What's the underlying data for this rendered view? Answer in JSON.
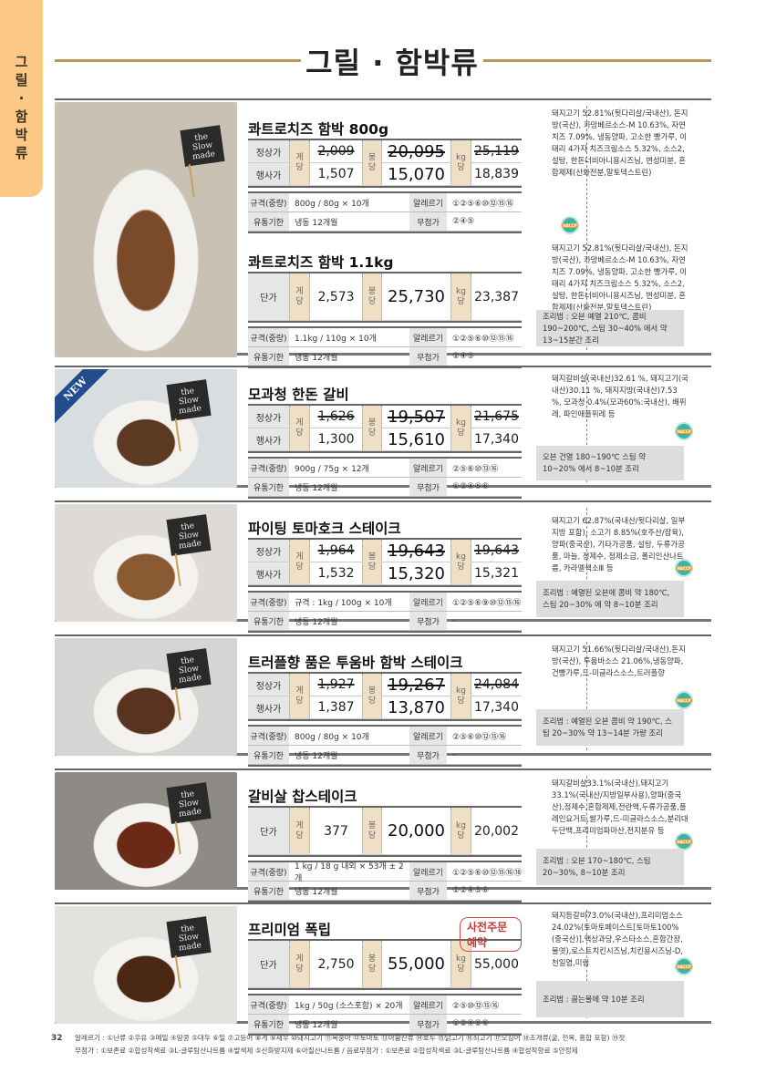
{
  "sidebar_tab": [
    "그",
    "릴",
    "·",
    "함",
    "박",
    "류"
  ],
  "page_title": "그릴 · 함박류",
  "labels": {
    "regular_price": "정상가",
    "event_price": "행사가",
    "unit_price": "단가",
    "per_piece": [
      "게",
      "당"
    ],
    "per_pack": [
      "봉",
      "당"
    ],
    "per_kg": [
      "kg",
      "당"
    ],
    "spec": "규격(중량)",
    "allergy": "알레르기",
    "shelf_life": "유통기한",
    "additive_free": "무첨가",
    "flag": [
      "the",
      "Slow",
      "made"
    ],
    "new_badge": "NEW"
  },
  "colors": {
    "accent_tab": "#fbc985",
    "title_rule": "#b9975b",
    "unit_bg": "#efdfc5",
    "label_bg": "#e6e6e6",
    "preorder": "#c03838",
    "haccp": "#3ab4a4"
  },
  "products": [
    {
      "name": "콰트로치즈 함박 800g",
      "type": "event",
      "regular": {
        "piece": "2,009",
        "pack": "20,095",
        "kg": "25,119"
      },
      "event": {
        "piece": "1,507",
        "pack": "15,070",
        "kg": "18,839"
      },
      "spec": "800g / 80g × 10개",
      "allergy": "①②⑤⑥⑩⑫⑮⑯",
      "shelf": "냉동 12개월",
      "additive_free": "②④⑤",
      "ingredients": "돼지고기 52.81%(뒷다리살/국내산), 돈지방(국산), 카망베르소스-M 10.63%, 자연치즈 7.09%, 냉동양파, 고소한 빵가루, 이태리 4가지 치즈크림소스 5.32%, 소스2, 설탕, 한돈너비아니용시즈닝, 변성미분, 혼합제제(산화전분,말토덱스트린)",
      "haccp": true
    },
    {
      "name": "콰트로치즈 함박 1.1kg",
      "type": "unit",
      "unit": {
        "piece": "2,573",
        "pack": "25,730",
        "kg": "23,387"
      },
      "spec": "1.1kg / 110g × 10개",
      "allergy": "①②⑤⑥⑩⑫⑮⑯",
      "shelf": "냉동 12개월",
      "additive_free": "②④⑤",
      "ingredients": "돼지고기 52.81%(뒷다리살/국내산), 돈지방(국산), 카망베르소스-M 10.63%, 자연치즈 7.09%, 냉동양파, 고소한 빵가루, 이태리 4가지 치즈크림소스 5.32%, 소스2, 설탕, 한돈너비아니용시즈닝, 변성미분, 혼합제제(산화전분,말토덱스트린)",
      "cooking": "조리법 : 오븐 예열 210℃, 콤비 190~200℃, 스팀 30~40% 에서 약 13~15분간 조리"
    },
    {
      "name": "모과청 한돈 갈비",
      "type": "event",
      "regular": {
        "piece": "1,626",
        "pack": "19,507",
        "kg": "21,675"
      },
      "event": {
        "piece": "1,300",
        "pack": "15,610",
        "kg": "17,340"
      },
      "spec": "900g / 75g × 12개",
      "allergy": "②⑤⑥⑩⑬⑯",
      "shelf": "냉동 12개월",
      "additive_free": "①②④⑤⑥",
      "ingredients": "돼지갈비살(국내산)32.61 %, 돼지고기(국내산)30.11 %, 돼지지방(국내산)7.53 %, 모과청 0.4%(모과60%:국내산), 배퓌레, 파인애플퓌레 등",
      "haccp": true,
      "cooking": "오븐 건열 180~190℃ 스팀 약 10~20% 에서 8~10분 조리",
      "badge": "new"
    },
    {
      "name": "파이팅 토마호크 스테이크",
      "type": "event",
      "regular": {
        "piece": "1,964",
        "pack": "19,643",
        "kg": "19,643"
      },
      "event": {
        "piece": "1,532",
        "pack": "15,320",
        "kg": "15,321"
      },
      "spec": "규격 : 1kg / 100g × 10개",
      "allergy": "①②⑤⑥⑨⑩⑫⑮⑯",
      "shelf": "냉동 12개월",
      "additive_free": "-",
      "ingredients": "돼지고기 62.87%(국내산/뒷다리살, 일부 지방 포함), 소고기 8.85%(호주산/잡육), 양파(중국산), 기타가공품, 설탕, 두류가공품, 마늘, 정제수, 정제소금, 폴리인산나트륨, 카라멜색소Ⅲ 등",
      "haccp": true,
      "cooking": "조리법 : 예열된 오븐에 콤비 약 180℃, 스팀 20~30% 에 약 8~10분 조리"
    },
    {
      "name": "트러플향 품은 투움바 함박 스테이크",
      "type": "event",
      "regular": {
        "piece": "1,927",
        "pack": "19,267",
        "kg": "24,084"
      },
      "event": {
        "piece": "1,387",
        "pack": "13,870",
        "kg": "17,340"
      },
      "spec": "800g / 80g × 10개",
      "allergy": "②⑤⑥⑩⑫⑮⑯",
      "shelf": "냉동 12개월",
      "additive_free": "-",
      "ingredients": "돼지고기 51.66%(뒷다리살/국내산),돈지방(국산), 투움바소스 21.06%,냉동양파,건빵가루,드-미글라스소스,트러플향",
      "haccp": true,
      "cooking": "조리법 : 예열된 오븐 콤비 약 190℃, 스팀 20~30% 약 13~14분 가량 조리"
    },
    {
      "name": "갈비살 찹스테이크",
      "type": "unit",
      "unit": {
        "piece": "377",
        "pack": "20,000",
        "kg": "20,002"
      },
      "spec": "1 kg / 18 g 내외 × 53개 ± 2개",
      "allergy": "①②⑤⑥⑩⑫⑮⑯⑱",
      "shelf": "냉동 12개월",
      "additive_free": "①②④⑤⑥",
      "ingredients": "돼지갈비살33.1%(국내산),돼지고기 33.1%(국내산/지방일부사용),양파(중국산),정제수,혼합제제,전란액,두류가공품,플레인요거트,쌀가루,드-미글라스소스,분리대두단백,프리미엄파마산,전지분유 등",
      "haccp": true,
      "cooking": "조리법 : 오븐 170~180℃, 스팀 20~30%, 8~10분 조리"
    },
    {
      "name": "프리미엄 폭립",
      "type": "unit",
      "unit": {
        "piece": "2,750",
        "pack": "55,000",
        "kg": "55,000"
      },
      "spec": "1kg / 50g (소스포함) × 20개",
      "allergy": "②⑤⑩⑫⑮⑯",
      "shelf": "냉동 12개월",
      "additive_free": "①②④⑤⑥",
      "ingredients": "돼지등갈비73.0%(국내산),프리미엄소스 24.02%(토마토페이스트[토마토100%(중국산)],액상과당,우스타소스,혼합간장,물엿),로스트치킨시즈닝,치킨용시즈닝-D,천일염,미림",
      "haccp": true,
      "cooking": "조리법 : 끓는물에 약 10분 조리",
      "preorder": "사전주문 예약"
    }
  ],
  "footer": {
    "page_number": "32",
    "allergy_legend": "알레르기 : ①난류 ②우유 ③메밀 ④땅콩 ⑤대두 ⑥밀 ⑦고등어 ⑧게 ⑨새우 ⑩돼지고기 ⑪복숭아 ⑫토마토 ⑬아황산류 ⑭호두 ⑮닭고기 ⑯쇠고기 ⑰오징어 ⑱조개류(굴, 전복, 홍합 포함) ⑲잣",
    "additive_legend": "무첨가 : ①보존료 ②합성착색료 ③L-글루탐산나트륨 ④발색제 ⑤산화방지제 ⑥아질산나트륨 / 음료무첨가 : ①보존료 ②합성착색료 ③L-글루탐산나트륨 ④합성착향료 ⑤안정제"
  }
}
